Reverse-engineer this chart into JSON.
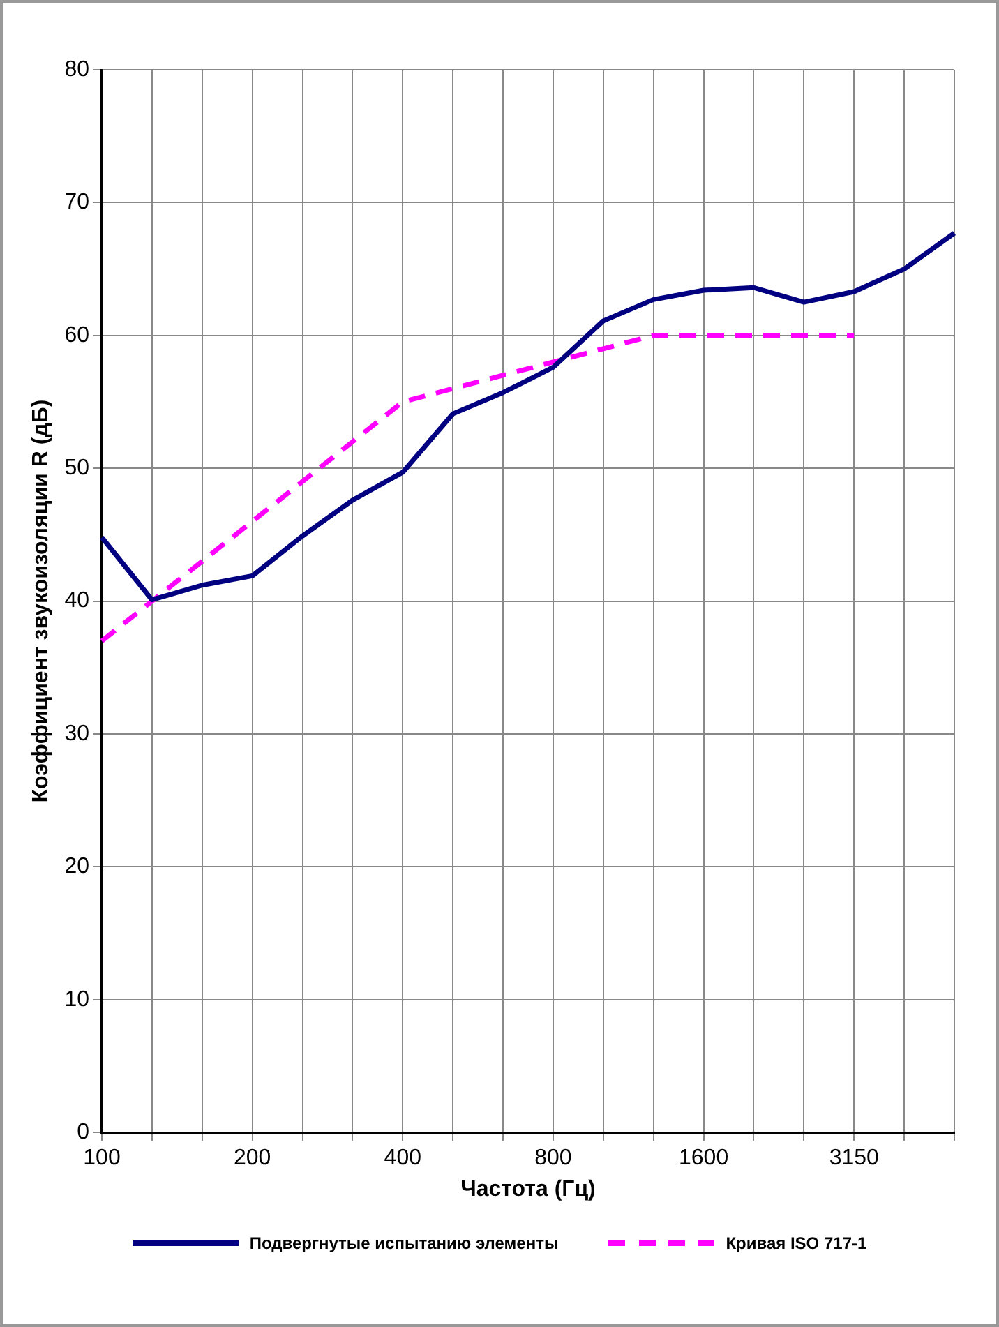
{
  "chart_data": {
    "type": "line",
    "xlabel": "Частота (Гц)",
    "ylabel": "Коэффициент звукоизоляции R (дБ)",
    "categories": [
      "100",
      null,
      null,
      "200",
      null,
      null,
      "400",
      null,
      null,
      "800",
      null,
      null,
      "1600",
      null,
      null,
      "3150",
      null,
      null
    ],
    "series": [
      {
        "name": "Подвергнутые испытанию элементы",
        "color": "#000080",
        "line_style": "solid",
        "values": [
          44.8,
          40.1,
          41.2,
          41.9,
          44.9,
          47.6,
          49.7,
          54.1,
          55.7,
          57.6,
          61.1,
          62.7,
          63.4,
          63.6,
          62.5,
          63.3,
          65.0,
          67.7
        ]
      },
      {
        "name": "Кривая ISO 717-1",
        "color": "#ff00ff",
        "line_style": "dashed",
        "values": [
          37,
          40,
          43,
          46,
          49,
          52,
          55,
          56,
          57,
          58,
          59,
          60,
          60,
          60,
          60,
          60,
          null,
          null
        ]
      }
    ],
    "ylim": [
      0,
      80
    ],
    "yticks": [
      0,
      10,
      20,
      30,
      40,
      50,
      60,
      70,
      80
    ],
    "grid": true,
    "legend": "bottom"
  }
}
